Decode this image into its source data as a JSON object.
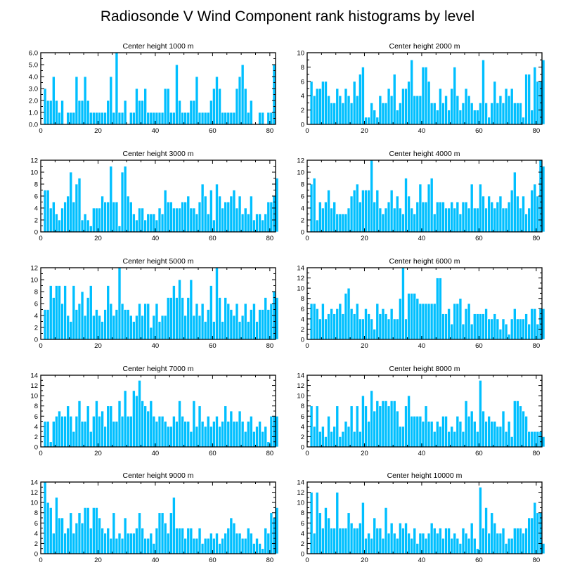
{
  "chart_data": {
    "type": "bar",
    "title": "Radiosonde V Wind Component rank histograms by level",
    "bar_color": "#00bfff",
    "bar_edge_color": "#ffffff",
    "panels": [
      {
        "title": "Center height 1000 m",
        "xlim": [
          0,
          82
        ],
        "xticks": [
          0,
          20,
          40,
          60,
          80
        ],
        "ylim": [
          0,
          6
        ],
        "yticks": [
          "0.0",
          "1.0",
          "2.0",
          "3.0",
          "4.0",
          "5.0",
          "6.0"
        ],
        "values": [
          0,
          3,
          2,
          2,
          4,
          2,
          1,
          2,
          0,
          1,
          1,
          1,
          4,
          2,
          2,
          4,
          2,
          1,
          1,
          1,
          1,
          1,
          1,
          2,
          4,
          1,
          6,
          1,
          1,
          2,
          0,
          1,
          1,
          3,
          2,
          2,
          3,
          1,
          1,
          1,
          1,
          1,
          1,
          3,
          3,
          1,
          1,
          5,
          2,
          1,
          1,
          1,
          2,
          2,
          4,
          1,
          1,
          1,
          1,
          2,
          3,
          4,
          3,
          1,
          1,
          1,
          1,
          1,
          3,
          4,
          5,
          3,
          1,
          2,
          0,
          0,
          1,
          1,
          0,
          1,
          1,
          5
        ]
      },
      {
        "title": "Center height 2000 m",
        "xlim": [
          0,
          82
        ],
        "xticks": [
          0,
          20,
          40,
          60,
          80
        ],
        "ylim": [
          0,
          10
        ],
        "yticks": [
          "0",
          "2",
          "4",
          "6",
          "8",
          "10"
        ],
        "values": [
          0,
          6,
          4,
          5,
          5,
          6,
          6,
          4,
          3,
          3,
          5,
          4,
          3,
          5,
          4,
          3,
          6,
          4,
          7,
          8,
          1,
          1,
          3,
          2,
          1,
          4,
          3,
          3,
          5,
          4,
          7,
          2,
          3,
          5,
          5,
          6,
          9,
          4,
          4,
          4,
          8,
          8,
          6,
          3,
          3,
          2,
          5,
          3,
          4,
          2,
          5,
          8,
          4,
          2,
          3,
          5,
          4,
          3,
          2,
          2,
          3,
          9,
          3,
          1,
          3,
          6,
          3,
          4,
          3,
          5,
          4,
          5,
          3,
          3,
          3,
          1,
          7,
          7,
          2,
          8,
          6,
          6,
          9
        ]
      },
      {
        "title": "Center height 3000 m",
        "xlim": [
          0,
          82
        ],
        "xticks": [
          0,
          20,
          40,
          60,
          80
        ],
        "ylim": [
          0,
          12
        ],
        "yticks": [
          "0",
          "2",
          "4",
          "6",
          "8",
          "10",
          "12"
        ],
        "values": [
          0,
          7,
          7,
          4,
          5,
          3,
          2,
          4,
          5,
          6,
          10,
          5,
          8,
          9,
          2,
          3,
          2,
          1,
          4,
          4,
          4,
          6,
          5,
          5,
          11,
          5,
          5,
          1,
          10,
          11,
          6,
          5,
          3,
          2,
          4,
          4,
          2,
          3,
          3,
          3,
          2,
          4,
          3,
          7,
          5,
          5,
          4,
          4,
          4,
          5,
          5,
          6,
          4,
          4,
          3,
          5,
          8,
          6,
          3,
          7,
          2,
          8,
          6,
          4,
          5,
          5,
          6,
          7,
          4,
          6,
          3,
          4,
          3,
          6,
          2,
          3,
          3,
          2,
          3,
          5,
          5,
          6,
          9
        ]
      },
      {
        "title": "Center height 4000 m",
        "xlim": [
          0,
          82
        ],
        "xticks": [
          0,
          20,
          40,
          60,
          80
        ],
        "ylim": [
          0,
          12
        ],
        "yticks": [
          "0",
          "2",
          "4",
          "6",
          "8",
          "10",
          "12"
        ],
        "values": [
          0,
          8,
          9,
          2,
          5,
          4,
          5,
          7,
          4,
          5,
          3,
          3,
          3,
          3,
          4,
          6,
          7,
          8,
          5,
          7,
          7,
          7,
          12,
          5,
          7,
          4,
          3,
          4,
          5,
          7,
          4,
          6,
          4,
          3,
          9,
          6,
          4,
          3,
          5,
          8,
          5,
          5,
          8,
          9,
          3,
          5,
          5,
          5,
          4,
          4,
          5,
          4,
          5,
          3,
          5,
          5,
          4,
          8,
          4,
          4,
          8,
          6,
          4,
          6,
          5,
          4,
          5,
          6,
          4,
          4,
          5,
          7,
          10,
          6,
          4,
          6,
          3,
          4,
          7,
          8,
          6,
          12,
          11
        ]
      },
      {
        "title": "Center height 5000 m",
        "xlim": [
          0,
          82
        ],
        "xticks": [
          0,
          20,
          40,
          60,
          80
        ],
        "ylim": [
          0,
          12
        ],
        "yticks": [
          "0",
          "2",
          "4",
          "6",
          "8",
          "10",
          "12"
        ],
        "values": [
          0,
          5,
          5,
          9,
          7,
          9,
          9,
          6,
          9,
          4,
          3,
          9,
          5,
          6,
          8,
          4,
          7,
          9,
          4,
          5,
          4,
          3,
          5,
          9,
          6,
          4,
          5,
          12,
          6,
          5,
          5,
          4,
          3,
          4,
          6,
          4,
          6,
          6,
          2,
          4,
          6,
          3,
          4,
          4,
          7,
          7,
          9,
          7,
          10,
          7,
          4,
          7,
          10,
          4,
          6,
          4,
          6,
          3,
          5,
          9,
          3,
          12,
          7,
          3,
          7,
          6,
          5,
          4,
          6,
          3,
          4,
          6,
          3,
          5,
          6,
          3,
          5,
          5,
          7,
          5,
          6,
          8,
          7
        ]
      },
      {
        "title": "Center height 6000 m",
        "xlim": [
          0,
          82
        ],
        "xticks": [
          0,
          20,
          40,
          60,
          80
        ],
        "ylim": [
          0,
          14
        ],
        "yticks": [
          "0",
          "2",
          "4",
          "6",
          "8",
          "10",
          "12",
          "14"
        ],
        "values": [
          0,
          7,
          7,
          6,
          4,
          7,
          4,
          5,
          6,
          5,
          6,
          7,
          5,
          9,
          10,
          6,
          5,
          7,
          4,
          4,
          6,
          5,
          4,
          2,
          7,
          5,
          6,
          5,
          4,
          6,
          4,
          4,
          8,
          14,
          4,
          9,
          9,
          9,
          8,
          7,
          7,
          7,
          7,
          7,
          7,
          12,
          12,
          5,
          5,
          6,
          3,
          7,
          7,
          8,
          3,
          6,
          7,
          3,
          5,
          5,
          5,
          5,
          6,
          4,
          4,
          5,
          4,
          2,
          4,
          3,
          1,
          4,
          6,
          4,
          4,
          4,
          5,
          3,
          6,
          6,
          3,
          6,
          6
        ]
      },
      {
        "title": "Center height 7000 m",
        "xlim": [
          0,
          82
        ],
        "xticks": [
          0,
          20,
          40,
          60,
          80
        ],
        "ylim": [
          0,
          14
        ],
        "yticks": [
          "0",
          "2",
          "4",
          "6",
          "8",
          "10",
          "12",
          "14"
        ],
        "values": [
          0,
          5,
          5,
          1,
          5,
          6,
          7,
          6,
          6,
          8,
          6,
          3,
          6,
          9,
          5,
          5,
          8,
          3,
          6,
          9,
          6,
          7,
          4,
          8,
          8,
          5,
          5,
          9,
          6,
          11,
          6,
          6,
          11,
          10,
          13,
          9,
          8,
          7,
          9,
          6,
          5,
          6,
          6,
          5,
          4,
          4,
          6,
          5,
          9,
          6,
          5,
          5,
          3,
          9,
          4,
          8,
          5,
          4,
          6,
          4,
          5,
          6,
          4,
          5,
          8,
          5,
          7,
          5,
          5,
          7,
          5,
          3,
          5,
          6,
          3,
          4,
          5,
          3,
          4,
          1,
          6,
          6,
          6
        ]
      },
      {
        "title": "Center height 8000 m",
        "xlim": [
          0,
          82
        ],
        "xticks": [
          0,
          20,
          40,
          60,
          80
        ],
        "ylim": [
          0,
          14
        ],
        "yticks": [
          "0",
          "2",
          "4",
          "6",
          "8",
          "10",
          "12",
          "14"
        ],
        "values": [
          0,
          8,
          4,
          8,
          3,
          4,
          2,
          6,
          3,
          4,
          8,
          2,
          3,
          5,
          4,
          8,
          3,
          8,
          3,
          10,
          8,
          5,
          11,
          7,
          9,
          8,
          9,
          9,
          8,
          9,
          9,
          7,
          4,
          4,
          8,
          10,
          6,
          6,
          6,
          6,
          5,
          8,
          5,
          5,
          3,
          5,
          4,
          6,
          6,
          3,
          4,
          3,
          6,
          5,
          3,
          9,
          6,
          7,
          5,
          3,
          13,
          7,
          5,
          6,
          5,
          5,
          4,
          4,
          7,
          3,
          5,
          2,
          9,
          9,
          8,
          7,
          6,
          3,
          3,
          3,
          3,
          3,
          2
        ]
      },
      {
        "title": "Center height 9000 m",
        "xlim": [
          0,
          82
        ],
        "xticks": [
          0,
          20,
          40,
          60,
          80
        ],
        "ylim": [
          0,
          14
        ],
        "yticks": [
          "0",
          "2",
          "4",
          "6",
          "8",
          "10",
          "12",
          "14"
        ],
        "values": [
          0,
          14,
          10,
          9,
          4,
          11,
          7,
          7,
          4,
          5,
          8,
          4,
          6,
          8,
          6,
          9,
          9,
          5,
          9,
          9,
          7,
          5,
          4,
          5,
          3,
          8,
          3,
          4,
          3,
          7,
          4,
          4,
          4,
          5,
          8,
          5,
          3,
          3,
          4,
          2,
          5,
          8,
          8,
          6,
          4,
          8,
          11,
          5,
          5,
          5,
          3,
          5,
          5,
          3,
          3,
          5,
          2,
          3,
          3,
          4,
          3,
          4,
          2,
          3,
          4,
          5,
          7,
          6,
          4,
          4,
          3,
          3,
          5,
          4,
          2,
          3,
          2,
          1,
          5,
          4,
          8,
          7,
          9
        ]
      },
      {
        "title": "Center height 10000 m",
        "xlim": [
          0,
          82
        ],
        "xticks": [
          0,
          20,
          40,
          60,
          80
        ],
        "ylim": [
          0,
          14
        ],
        "yticks": [
          "0",
          "2",
          "4",
          "6",
          "8",
          "10",
          "12",
          "14"
        ],
        "values": [
          0,
          12,
          4,
          12,
          8,
          5,
          9,
          7,
          5,
          5,
          12,
          5,
          5,
          5,
          8,
          6,
          5,
          5,
          6,
          10,
          3,
          4,
          3,
          7,
          5,
          5,
          3,
          9,
          4,
          6,
          4,
          3,
          6,
          5,
          6,
          4,
          3,
          5,
          2,
          4,
          4,
          3,
          4,
          6,
          5,
          4,
          5,
          3,
          5,
          5,
          3,
          4,
          3,
          2,
          5,
          4,
          3,
          6,
          3,
          1,
          13,
          5,
          9,
          4,
          8,
          6,
          4,
          4,
          5,
          2,
          3,
          3,
          5,
          5,
          5,
          4,
          5,
          7,
          7,
          10,
          8,
          8,
          2
        ]
      }
    ]
  }
}
